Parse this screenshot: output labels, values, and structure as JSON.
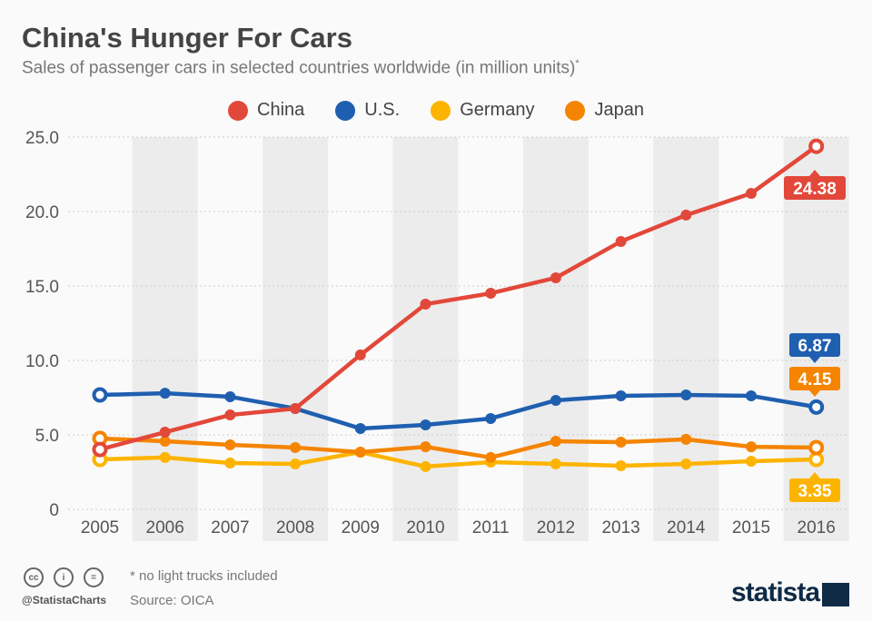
{
  "title": "China's Hunger For Cars",
  "subtitle": "Sales of passenger cars in selected countries worldwide (in million units)",
  "subtitle_mark": "*",
  "footer": {
    "note": "* no light trucks included",
    "source": "Source: OICA",
    "handle": "@StatistaCharts",
    "logo": "statista",
    "license_icons": [
      "cc-icon",
      "by-icon",
      "nd-icon"
    ]
  },
  "chart_data": {
    "type": "line",
    "title": "China's Hunger For Cars",
    "x": [
      2005,
      2006,
      2007,
      2008,
      2009,
      2010,
      2011,
      2012,
      2013,
      2014,
      2015,
      2016
    ],
    "ylim": [
      0,
      25
    ],
    "yticks": [
      "0",
      "5.0",
      "10.0",
      "15.0",
      "20.0",
      "25.0"
    ],
    "grid": true,
    "legend": "top",
    "series": [
      {
        "name": "China",
        "color": "#e2483a",
        "values": [
          4.02,
          5.18,
          6.34,
          6.77,
          10.37,
          13.78,
          14.51,
          15.55,
          17.99,
          19.76,
          21.22,
          24.38
        ],
        "end_label": "24.38"
      },
      {
        "name": "U.S.",
        "color": "#1f5fb0",
        "values": [
          7.68,
          7.8,
          7.56,
          6.77,
          5.43,
          5.67,
          6.1,
          7.32,
          7.62,
          7.68,
          7.62,
          6.87
        ],
        "end_label": "6.87"
      },
      {
        "name": "Germany",
        "color": "#fdb400",
        "values": [
          3.35,
          3.48,
          3.11,
          3.05,
          3.84,
          2.87,
          3.17,
          3.05,
          2.93,
          3.05,
          3.23,
          3.35
        ],
        "end_label": "3.35"
      },
      {
        "name": "Japan",
        "color": "#f58400",
        "values": [
          4.76,
          4.57,
          4.33,
          4.15,
          3.84,
          4.2,
          3.48,
          4.57,
          4.51,
          4.7,
          4.2,
          4.15
        ],
        "end_label": "4.15"
      }
    ]
  }
}
